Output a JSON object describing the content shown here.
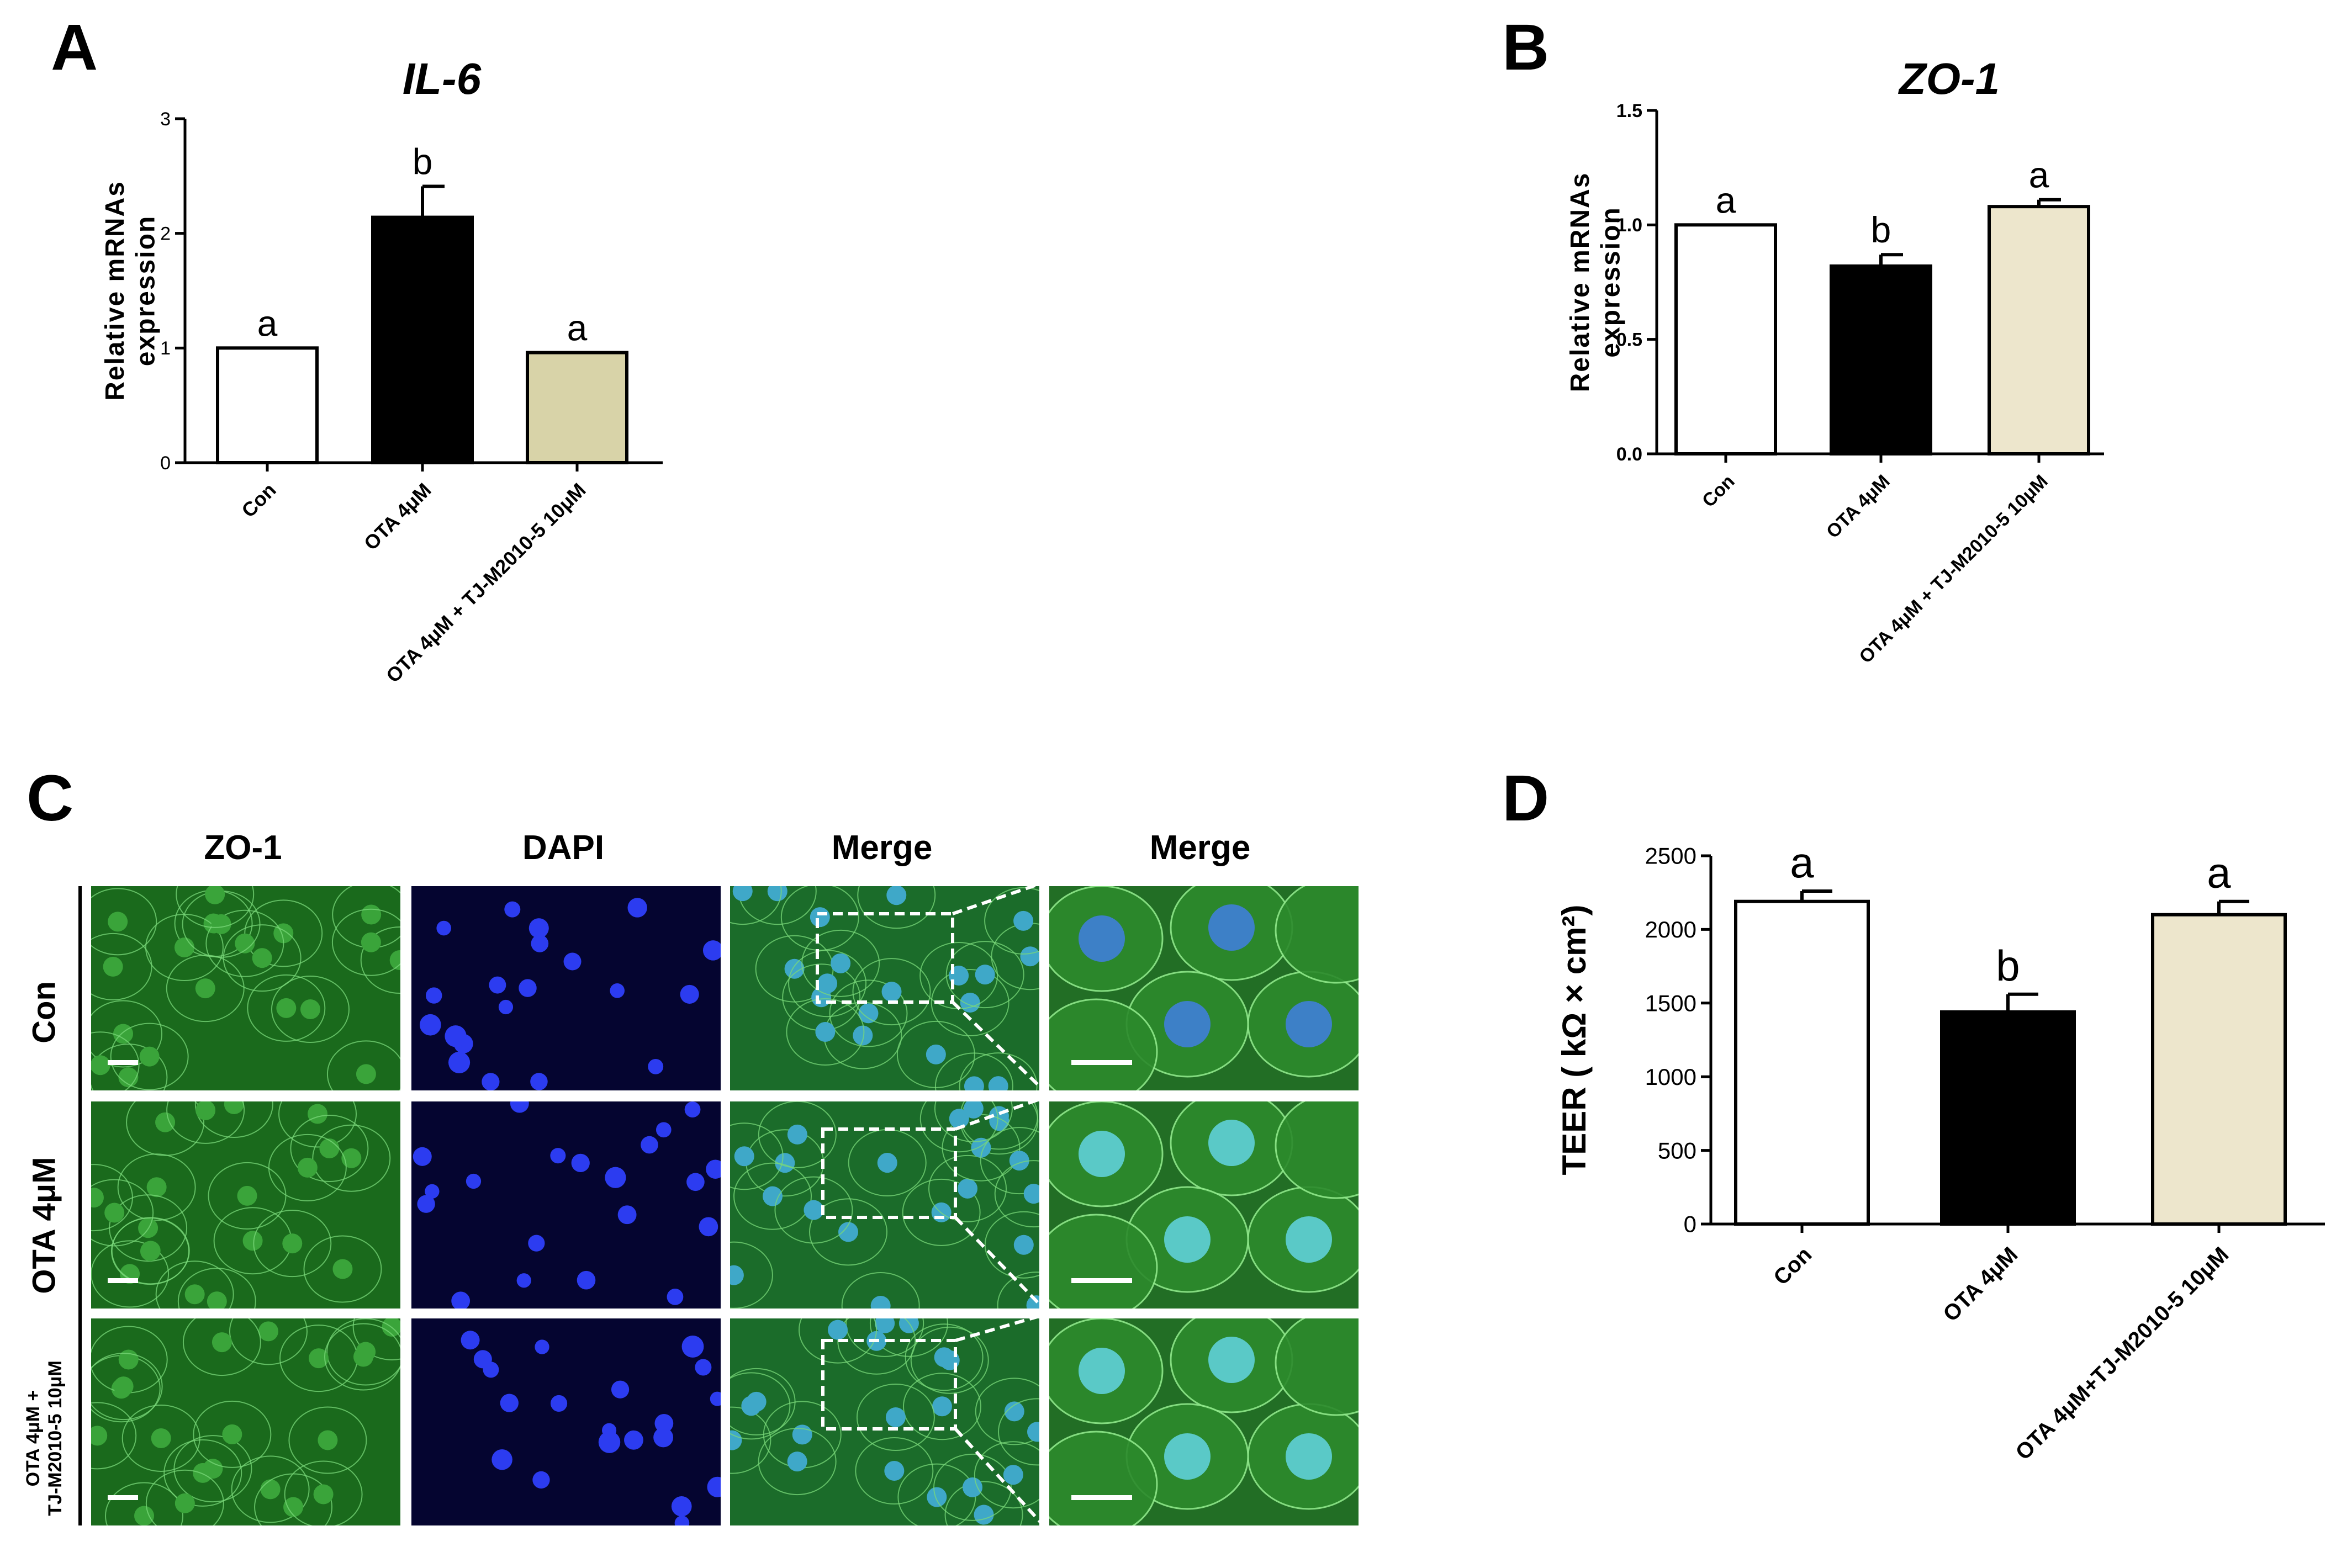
{
  "panels": {
    "a": {
      "letter": "A"
    },
    "b": {
      "letter": "B"
    },
    "c": {
      "letter": "C"
    },
    "d": {
      "letter": "D"
    }
  },
  "chart_data": [
    {
      "id": "A",
      "type": "bar",
      "title": "IL-6",
      "ylabel": "Relative mRNAs\nexpression",
      "categories": [
        "Con",
        "OTA 4μM",
        "OTA 4μM + TJ-M2010-5 10μM"
      ],
      "values": [
        1.0,
        2.14,
        0.96
      ],
      "errors": [
        0,
        0.27,
        0
      ],
      "letters": [
        "a",
        "b",
        "a"
      ],
      "colors": [
        "#ffffff",
        "#000000",
        "#d8d3a8"
      ],
      "ylim": [
        0,
        3
      ],
      "yticks": [
        "0",
        "1",
        "2",
        "3"
      ]
    },
    {
      "id": "B",
      "type": "bar",
      "title": "ZO-1",
      "ylabel": "Relative mRNAs\nexpression",
      "categories": [
        "Con",
        "OTA 4μM",
        "OTA 4μM + TJ-M2010-5 10μM"
      ],
      "values": [
        1.0,
        0.82,
        1.08
      ],
      "errors": [
        0,
        0.05,
        0.03
      ],
      "letters": [
        "a",
        "b",
        "a"
      ],
      "colors": [
        "#ffffff",
        "#000000",
        "#ede6cc"
      ],
      "ylim": [
        0,
        1.5
      ],
      "yticks": [
        "0.0",
        "0.5",
        "1.0",
        "1.5"
      ]
    },
    {
      "id": "D",
      "type": "bar",
      "title": "",
      "ylabel": "TEER ( kΩ × cm²)",
      "categories": [
        "Con",
        "OTA 4μM",
        "OTA 4μM+TJ-M2010-5 10μM"
      ],
      "values": [
        2190,
        1440,
        2100
      ],
      "errors": [
        70,
        120,
        90
      ],
      "letters": [
        "a",
        "b",
        "a"
      ],
      "colors": [
        "#ffffff",
        "#000000",
        "#ede6cc"
      ],
      "ylim": [
        0,
        2500
      ],
      "yticks": [
        "0",
        "500",
        "1000",
        "1500",
        "2000",
        "2500"
      ]
    }
  ],
  "microscopy": {
    "columns": [
      "ZO-1",
      "DAPI",
      "Merge",
      "Merge"
    ],
    "rows": [
      "Con",
      "OTA  4μM",
      "OTA 4μM +\nTJ-M2010-5 10μM"
    ]
  }
}
